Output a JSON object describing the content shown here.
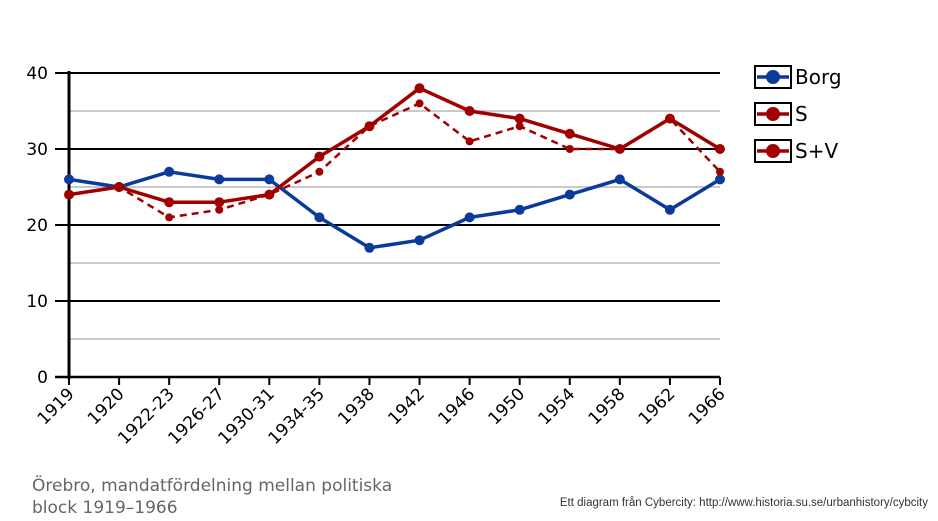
{
  "chart_data": {
    "type": "line",
    "title": "Örebro, mandatfördelning mellan politiska block 1919–1966",
    "xlabel": "",
    "ylabel": "",
    "ylim": [
      0,
      40
    ],
    "yticks": [
      "0",
      "10",
      "20",
      "30",
      "40"
    ],
    "grid": true,
    "legend_position": "right",
    "categories": [
      "1919",
      "1920",
      "1922-23",
      "1926-27",
      "1930-31",
      "1934-35",
      "1938",
      "1942",
      "1946",
      "1950",
      "1954",
      "1958",
      "1962",
      "1966"
    ],
    "series": [
      {
        "name": "Borg",
        "color": "#0a3a9a",
        "dashed": false,
        "values": [
          26,
          25,
          27,
          26,
          26,
          21,
          17,
          18,
          21,
          22,
          24,
          26,
          22,
          26
        ]
      },
      {
        "name": "S",
        "color": "#a00000",
        "dashed": true,
        "values": [
          24,
          25,
          21,
          22,
          24,
          27,
          33,
          36,
          31,
          33,
          30,
          30,
          34,
          27
        ]
      },
      {
        "name": "S+V",
        "color": "#a00000",
        "dashed": false,
        "values": [
          24,
          25,
          23,
          23,
          24,
          29,
          33,
          38,
          35,
          34,
          32,
          30,
          34,
          30
        ]
      }
    ]
  },
  "caption_line1": "Örebro, mandatfördelning mellan politiska",
  "caption_line2": "block 1919–1966",
  "source": "Ett diagram från Cybercity: http://www.historia.su.se/urbanhistory/cybcity"
}
